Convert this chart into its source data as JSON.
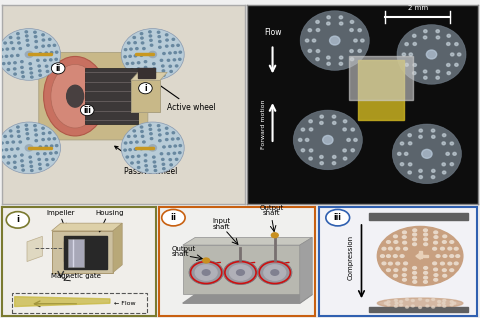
{
  "background_color": "#f0f0f0",
  "top_left_bg": "#ddd8cc",
  "top_right_bg": "#0d0d0d",
  "panel_i_border": "#7a7a30",
  "panel_ii_border": "#c86010",
  "panel_iii_border": "#3060b0",
  "scale_bar_text": "2 mm",
  "flow_label": "Flow",
  "forward_motion_label": "Forward motion",
  "active_wheel_label": "Active wheel",
  "passive_wheel_label": "Passive wheel",
  "impeller_label": "Impeller",
  "housing_label": "Housing",
  "magnetic_gate_label": "Magnetic gate",
  "flow_bottom_label": "Flow",
  "input_shaft_label": "Input\nshaft",
  "output_shaft_top": "Output\nshaft",
  "output_shaft_bot": "Output\nshaft",
  "compression_label": "Compression",
  "wheel_color": "#b8ccd8",
  "wheel_dot_color": "#6888a0",
  "body_tan": "#c8b888",
  "body_dark": "#484440",
  "motor_pink": "#c87060",
  "axle_gold": "#c89820",
  "panel_i_bg": "#f0eeea",
  "panel_ii_bg": "#f0f0ee",
  "panel_iii_bg": "#f2f2f6",
  "housing_tan": "#ccc0a0",
  "housing_dark": "#282828",
  "impeller_gray": "#a8a8b8",
  "gear_gray": "#b0b0b8",
  "gear_body_color": "#b8b8b0",
  "red_arrow": "#cc1010",
  "wheel_rose": "#c8a080",
  "wheel_hole": "#e8d8c8",
  "bar_dark": "#606060"
}
